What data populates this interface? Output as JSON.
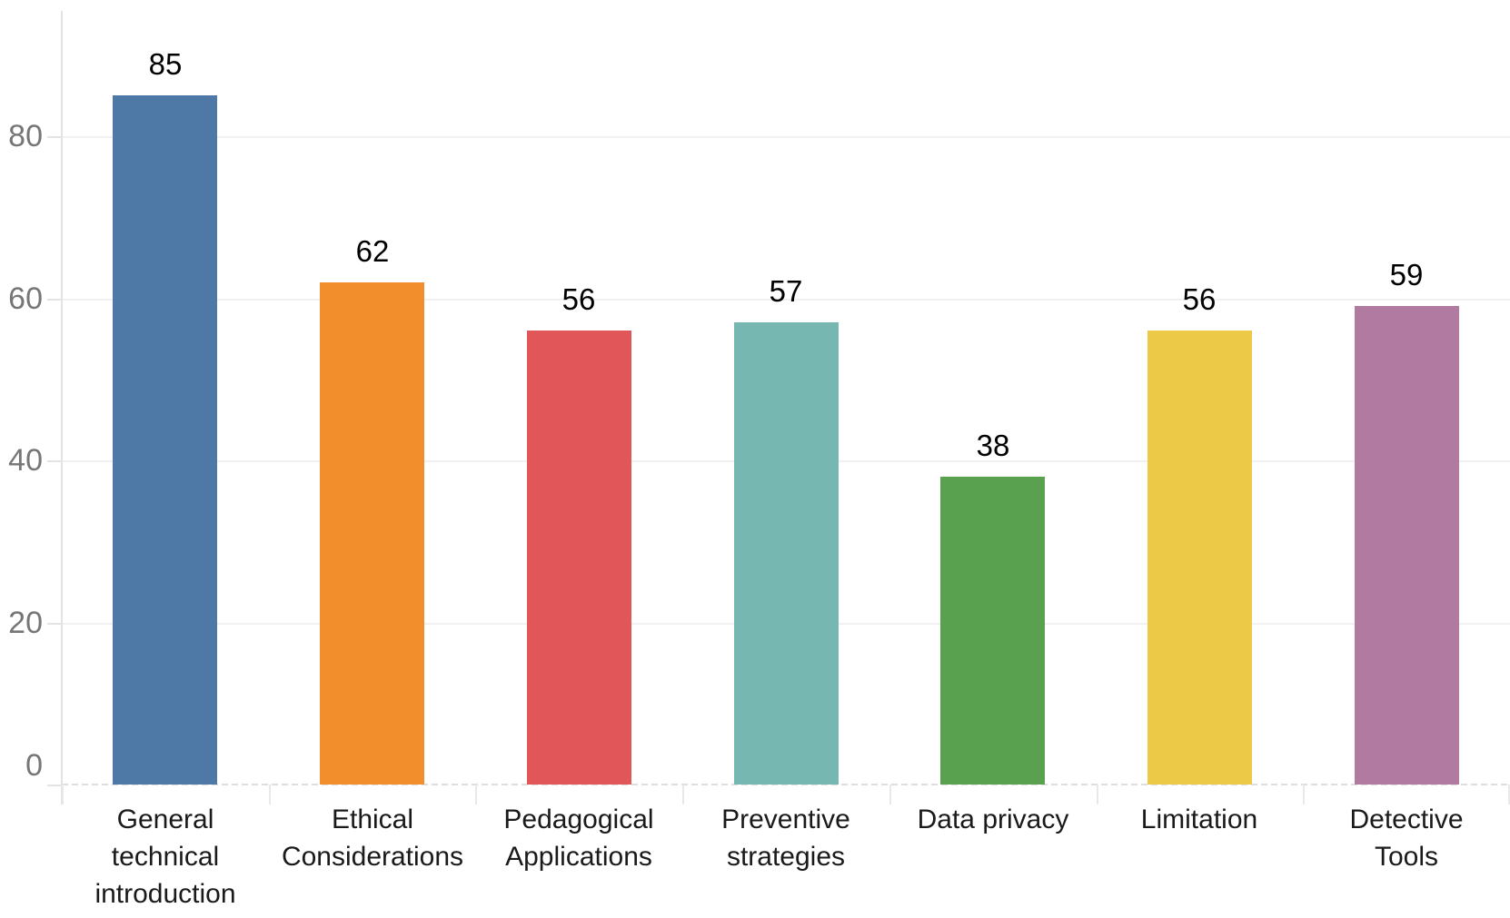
{
  "chart_data": {
    "type": "bar",
    "title": "",
    "xlabel": "",
    "ylabel": "",
    "categories": [
      "General technical introduction",
      "Ethical Considerations",
      "Pedagogical Applications",
      "Preventive strategies",
      "Data privacy",
      "Limitation",
      "Detective Tools"
    ],
    "category_display_lines": [
      "General\ntechnical\nintroduction",
      "Ethical\nConsiderations",
      "Pedagogical\nApplications",
      "Preventive\nstrategies",
      "Data privacy",
      "Limitation",
      "Detective\nTools"
    ],
    "values": [
      85,
      62,
      56,
      57,
      38,
      56,
      59
    ],
    "bar_colors": [
      "#4E79A7",
      "#F28E2B",
      "#E15759",
      "#76B7B2",
      "#59A14F",
      "#EDC948",
      "#B07AA1"
    ],
    "yticks": [
      0,
      20,
      40,
      60,
      80
    ],
    "ylim": [
      0,
      95
    ],
    "grid": "horizontal-light",
    "legend": "none",
    "value_labels_shown": true,
    "colors": {
      "background": "#ffffff",
      "axis_tick_label": "#767676",
      "value_label": "#000000",
      "category_label": "#1a1a1a",
      "gridline": "#f1f1f1",
      "axis_line": "#e3e3e3",
      "baseline_dash": "#dedede"
    }
  }
}
